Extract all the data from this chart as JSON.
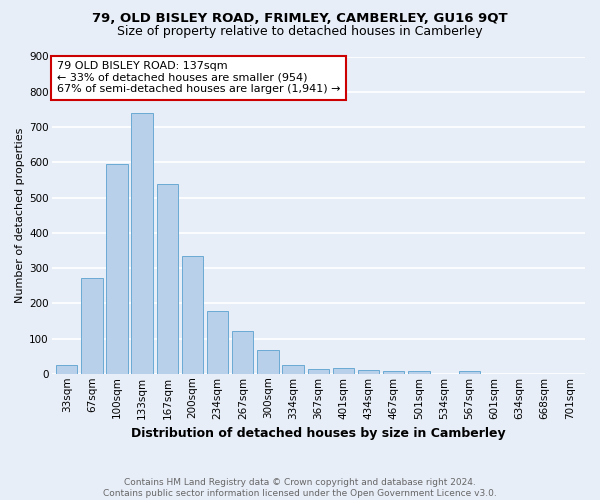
{
  "title1": "79, OLD BISLEY ROAD, FRIMLEY, CAMBERLEY, GU16 9QT",
  "title2": "Size of property relative to detached houses in Camberley",
  "xlabel": "Distribution of detached houses by size in Camberley",
  "ylabel": "Number of detached properties",
  "bar_labels": [
    "33sqm",
    "67sqm",
    "100sqm",
    "133sqm",
    "167sqm",
    "200sqm",
    "234sqm",
    "267sqm",
    "300sqm",
    "334sqm",
    "367sqm",
    "401sqm",
    "434sqm",
    "467sqm",
    "501sqm",
    "534sqm",
    "567sqm",
    "601sqm",
    "634sqm",
    "668sqm",
    "701sqm"
  ],
  "bar_values": [
    25,
    272,
    594,
    741,
    537,
    335,
    178,
    120,
    68,
    25,
    14,
    15,
    10,
    9,
    9,
    0,
    8,
    0,
    0,
    0,
    0
  ],
  "bar_color": "#b8d0ea",
  "bar_edge_color": "#6aaad4",
  "background_color": "#e8eef8",
  "grid_color": "#ffffff",
  "annotation_text": "79 OLD BISLEY ROAD: 137sqm\n← 33% of detached houses are smaller (954)\n67% of semi-detached houses are larger (1,941) →",
  "annotation_box_color": "#ffffff",
  "annotation_box_edge": "#cc0000",
  "ylim": [
    0,
    900
  ],
  "yticks": [
    0,
    100,
    200,
    300,
    400,
    500,
    600,
    700,
    800,
    900
  ],
  "footnote": "Contains HM Land Registry data © Crown copyright and database right 2024.\nContains public sector information licensed under the Open Government Licence v3.0.",
  "title1_fontsize": 9.5,
  "title2_fontsize": 9,
  "xlabel_fontsize": 9,
  "ylabel_fontsize": 8,
  "tick_fontsize": 7.5,
  "footnote_fontsize": 6.5,
  "annotation_fontsize": 8
}
